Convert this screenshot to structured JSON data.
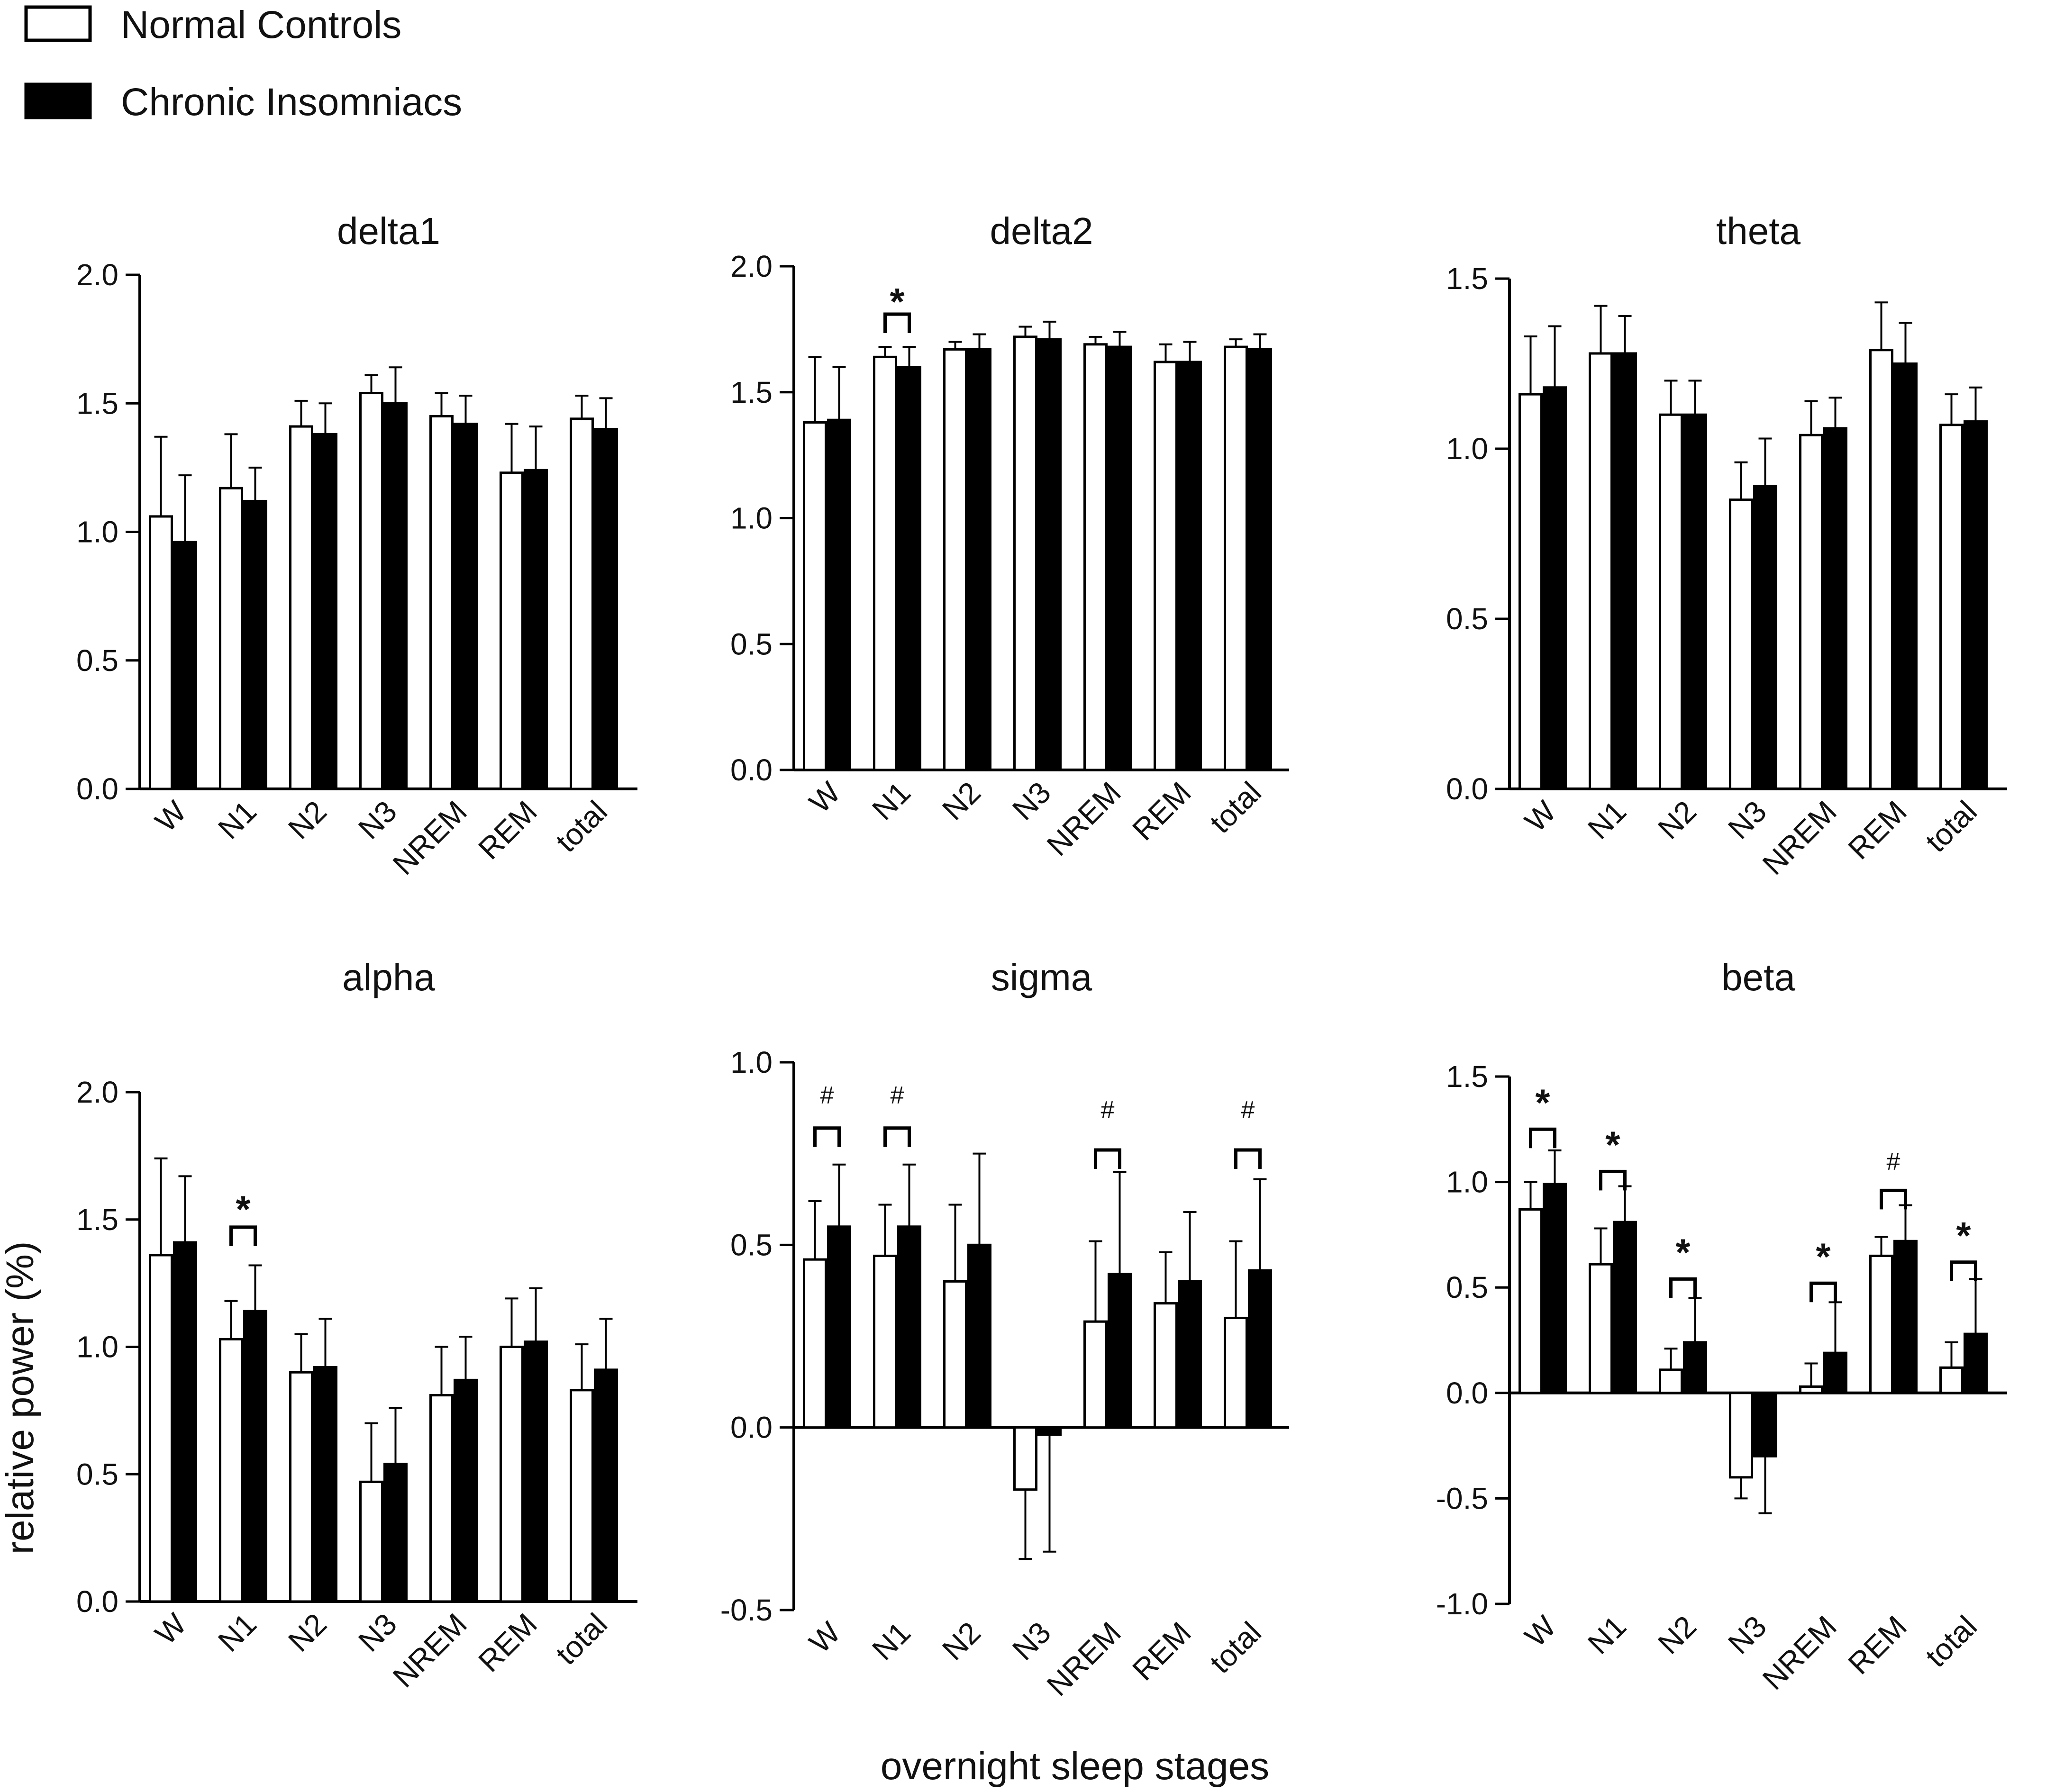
{
  "legend": {
    "items": [
      {
        "label": "Normal Controls",
        "fill": "#ffffff"
      },
      {
        "label": "Chronic Insomniacs",
        "fill": "#000000"
      }
    ]
  },
  "axis_titles": {
    "ylabel": "relative power (%)",
    "xlabel": "overnight sleep stages"
  },
  "chart_data": [
    {
      "type": "bar",
      "title": "delta1",
      "categories": [
        "W",
        "N1",
        "N2",
        "N3",
        "NREM",
        "REM",
        "total"
      ],
      "ylim": [
        0.0,
        2.0
      ],
      "yticks": [
        "0.0",
        "0.5",
        "1.0",
        "1.5",
        "2.0"
      ],
      "yticks_values": [
        0.0,
        0.5,
        1.0,
        1.5,
        2.0
      ],
      "series": [
        {
          "name": "Normal Controls",
          "values": [
            1.06,
            1.17,
            1.41,
            1.54,
            1.45,
            1.23,
            1.44
          ],
          "errors": [
            0.31,
            0.21,
            0.1,
            0.07,
            0.09,
            0.19,
            0.09
          ]
        },
        {
          "name": "Chronic Insomniacs",
          "values": [
            0.96,
            1.12,
            1.38,
            1.5,
            1.42,
            1.24,
            1.4
          ],
          "errors": [
            0.26,
            0.13,
            0.12,
            0.14,
            0.11,
            0.17,
            0.12
          ]
        }
      ],
      "annotations": []
    },
    {
      "type": "bar",
      "title": "delta2",
      "categories": [
        "W",
        "N1",
        "N2",
        "N3",
        "NREM",
        "REM",
        "total"
      ],
      "ylim": [
        0.0,
        2.0
      ],
      "yticks": [
        "0.0",
        "0.5",
        "1.0",
        "1.5",
        "2.0"
      ],
      "yticks_values": [
        0.0,
        0.5,
        1.0,
        1.5,
        2.0
      ],
      "series": [
        {
          "name": "Normal Controls",
          "values": [
            1.38,
            1.64,
            1.67,
            1.72,
            1.69,
            1.62,
            1.68
          ],
          "errors": [
            0.26,
            0.04,
            0.03,
            0.04,
            0.03,
            0.07,
            0.03
          ]
        },
        {
          "name": "Chronic Insomniacs",
          "values": [
            1.39,
            1.6,
            1.67,
            1.71,
            1.68,
            1.62,
            1.67
          ],
          "errors": [
            0.21,
            0.08,
            0.06,
            0.07,
            0.06,
            0.08,
            0.06
          ]
        }
      ],
      "annotations": [
        {
          "category": "N1",
          "symbol": "*",
          "bracket_at": 1.81,
          "label_at": 1.88
        }
      ]
    },
    {
      "type": "bar",
      "title": "theta",
      "categories": [
        "W",
        "N1",
        "N2",
        "N3",
        "NREM",
        "REM",
        "total"
      ],
      "ylim": [
        0.0,
        1.5
      ],
      "yticks": [
        "0.0",
        "0.5",
        "1.0",
        "1.5"
      ],
      "yticks_values": [
        0.0,
        0.5,
        1.0,
        1.5
      ],
      "series": [
        {
          "name": "Normal Controls",
          "values": [
            1.16,
            1.28,
            1.1,
            0.85,
            1.04,
            1.29,
            1.07
          ],
          "errors": [
            0.17,
            0.14,
            0.1,
            0.11,
            0.1,
            0.14,
            0.09
          ]
        },
        {
          "name": "Chronic Insomniacs",
          "values": [
            1.18,
            1.28,
            1.1,
            0.89,
            1.06,
            1.25,
            1.08
          ],
          "errors": [
            0.18,
            0.11,
            0.1,
            0.14,
            0.09,
            0.12,
            0.1
          ]
        }
      ],
      "annotations": []
    },
    {
      "type": "bar",
      "title": "alpha",
      "categories": [
        "W",
        "N1",
        "N2",
        "N3",
        "NREM",
        "REM",
        "total"
      ],
      "ylim": [
        0.0,
        2.0
      ],
      "yticks": [
        "0.0",
        "0.5",
        "1.0",
        "1.5",
        "2.0"
      ],
      "yticks_values": [
        0.0,
        0.5,
        1.0,
        1.5,
        2.0
      ],
      "series": [
        {
          "name": "Normal Controls",
          "values": [
            1.36,
            1.03,
            0.9,
            0.47,
            0.81,
            1.0,
            0.83
          ],
          "errors": [
            0.38,
            0.15,
            0.15,
            0.23,
            0.19,
            0.19,
            0.18
          ]
        },
        {
          "name": "Chronic Insomniacs",
          "values": [
            1.41,
            1.14,
            0.92,
            0.54,
            0.87,
            1.02,
            0.91
          ],
          "errors": [
            0.26,
            0.18,
            0.19,
            0.22,
            0.17,
            0.21,
            0.2
          ]
        }
      ],
      "annotations": [
        {
          "category": "N1",
          "symbol": "*",
          "bracket_at": 1.47,
          "label_at": 1.56
        }
      ]
    },
    {
      "type": "bar",
      "title": "sigma",
      "categories": [
        "W",
        "N1",
        "N2",
        "N3",
        "NREM",
        "REM",
        "total"
      ],
      "ylim": [
        -0.5,
        1.0
      ],
      "yticks": [
        "-0.5",
        "0.0",
        "0.5",
        "1.0"
      ],
      "yticks_values": [
        -0.5,
        0.0,
        0.5,
        1.0
      ],
      "series": [
        {
          "name": "Normal Controls",
          "values": [
            0.46,
            0.47,
            0.4,
            -0.17,
            0.29,
            0.34,
            0.3
          ],
          "errors": [
            0.16,
            0.14,
            0.21,
            0.19,
            0.22,
            0.14,
            0.21
          ]
        },
        {
          "name": "Chronic Insomniacs",
          "values": [
            0.55,
            0.55,
            0.5,
            -0.02,
            0.42,
            0.4,
            0.43
          ],
          "errors": [
            0.17,
            0.17,
            0.25,
            0.32,
            0.28,
            0.19,
            0.25
          ]
        }
      ],
      "annotations": [
        {
          "category": "W",
          "symbol": "#",
          "bracket_at": 0.82,
          "label_at": 0.9
        },
        {
          "category": "N1",
          "symbol": "#",
          "bracket_at": 0.82,
          "label_at": 0.9
        },
        {
          "category": "NREM",
          "symbol": "#",
          "bracket_at": 0.76,
          "label_at": 0.86
        },
        {
          "category": "total",
          "symbol": "#",
          "bracket_at": 0.76,
          "label_at": 0.86
        }
      ]
    },
    {
      "type": "bar",
      "title": "beta",
      "categories": [
        "W",
        "N1",
        "N2",
        "N3",
        "NREM",
        "REM",
        "total"
      ],
      "ylim": [
        -1.0,
        1.5
      ],
      "yticks": [
        "-1.0",
        "-0.5",
        "0.0",
        "0.5",
        "1.0",
        "1.5"
      ],
      "yticks_values": [
        -1.0,
        -0.5,
        0.0,
        0.5,
        1.0,
        1.5
      ],
      "series": [
        {
          "name": "Normal Controls",
          "values": [
            0.87,
            0.61,
            0.11,
            -0.4,
            0.03,
            0.65,
            0.12
          ],
          "errors": [
            0.13,
            0.17,
            0.1,
            0.1,
            0.11,
            0.09,
            0.12
          ]
        },
        {
          "name": "Chronic Insomniacs",
          "values": [
            0.99,
            0.81,
            0.24,
            -0.3,
            0.19,
            0.72,
            0.28
          ],
          "errors": [
            0.16,
            0.17,
            0.21,
            0.27,
            0.24,
            0.17,
            0.26
          ]
        }
      ],
      "annotations": [
        {
          "category": "W",
          "symbol": "*",
          "bracket_at": 1.25,
          "label_at": 1.4
        },
        {
          "category": "N1",
          "symbol": "*",
          "bracket_at": 1.05,
          "label_at": 1.2
        },
        {
          "category": "N2",
          "symbol": "*",
          "bracket_at": 0.54,
          "label_at": 0.69
        },
        {
          "category": "NREM",
          "symbol": "*",
          "bracket_at": 0.52,
          "label_at": 0.67
        },
        {
          "category": "REM",
          "symbol": "#",
          "bracket_at": 0.96,
          "label_at": 1.08
        },
        {
          "category": "total",
          "symbol": "*",
          "bracket_at": 0.62,
          "label_at": 0.77
        }
      ]
    }
  ]
}
